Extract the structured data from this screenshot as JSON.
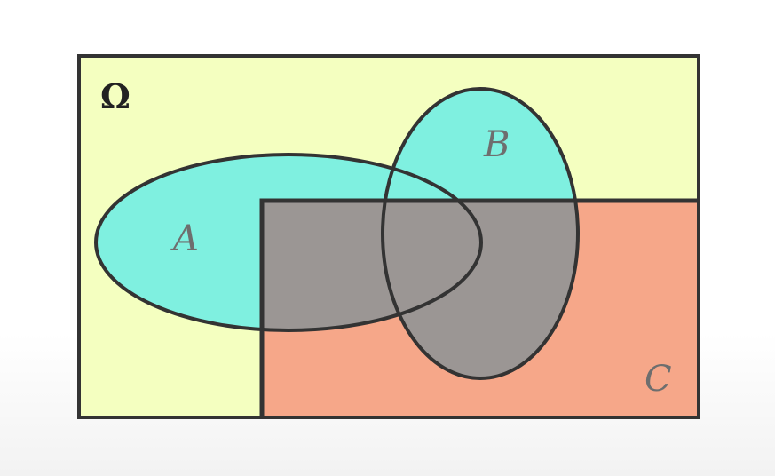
{
  "diagram": {
    "universe": {
      "label": "Ω"
    },
    "sets": [
      {
        "id": "A",
        "label": "A",
        "shape": "ellipse"
      },
      {
        "id": "B",
        "label": "B",
        "shape": "ellipse"
      },
      {
        "id": "C",
        "label": "C",
        "shape": "rectangle"
      }
    ]
  },
  "colors": {
    "universe_fill": "#f4ffc0",
    "ellipse_fill": "#7ff0e0",
    "rect_fill": "#f6a789",
    "overlap_fill": "#9b9694",
    "stroke": "#333333",
    "label": "#6e6e6e",
    "omega": "#222222"
  }
}
